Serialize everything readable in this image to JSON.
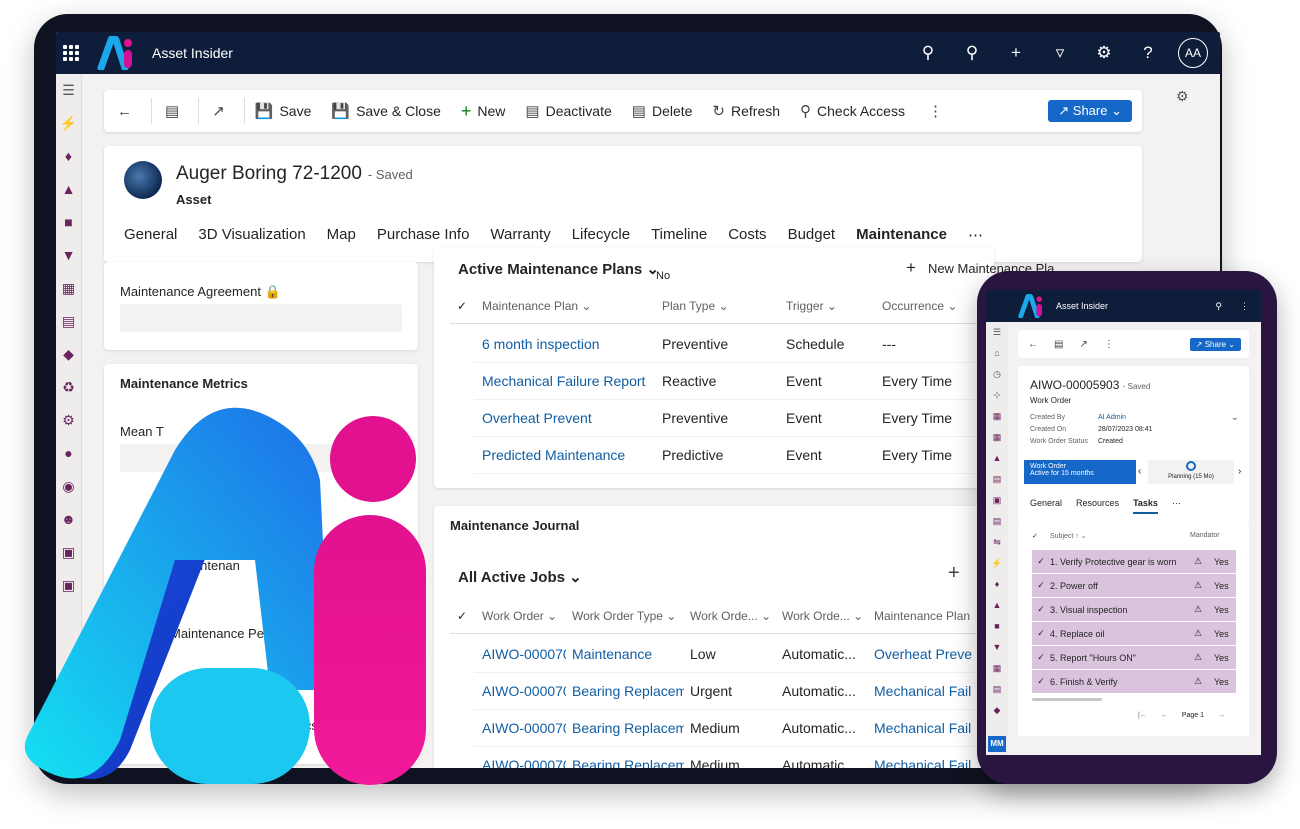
{
  "app": {
    "title": "Asset Insider",
    "avatar": "AA"
  },
  "topbar": {
    "icons": [
      "search-icon",
      "lightbulb-icon",
      "plus-icon",
      "filter-icon",
      "gear-icon",
      "help-icon"
    ]
  },
  "cmdbar": {
    "save": "Save",
    "save_close": "Save & Close",
    "new": "New",
    "deactivate": "Deactivate",
    "delete": "Delete",
    "refresh": "Refresh",
    "check_access": "Check Access",
    "share": "Share"
  },
  "record": {
    "title": "Auger Boring 72-1200",
    "status": "- Saved",
    "entity": "Asset",
    "tabs": [
      "General",
      "3D Visualization",
      "Map",
      "Purchase Info",
      "Warranty",
      "Lifecycle",
      "Timeline",
      "Costs",
      "Budget",
      "Maintenance",
      "⋯"
    ]
  },
  "left": {
    "agreement_label": "Maintenance Agreement",
    "metrics_title": "Maintenance Metrics",
    "mean_label": "Mean T",
    "maint_label": "aintenan",
    "perc_label": "Maintenance Perce",
    "ics_label": "ics"
  },
  "plans": {
    "title": "Active Maintenance Plans",
    "subtitle": "No",
    "new_label": "New Maintenance Pla...",
    "columns": [
      "Maintenance Plan",
      "Plan Type",
      "Trigger",
      "Occurrence"
    ],
    "rows": [
      [
        "6 month inspection",
        "Preventive",
        "Schedule",
        "---"
      ],
      [
        "Mechanical Failure Report",
        "Reactive",
        "Event",
        "Every Time"
      ],
      [
        "Overheat Prevent",
        "Preventive",
        "Event",
        "Every Time"
      ],
      [
        "Predicted Maintenance",
        "Predictive",
        "Event",
        "Every Time"
      ]
    ]
  },
  "journal": {
    "title": "Maintenance Journal",
    "view": "All Active Jobs",
    "columns": [
      "Work Order",
      "Work Order Type",
      "Work Orde...",
      "Work Orde...",
      "Maintenance Plan"
    ],
    "rows": [
      [
        "AIWO-000070(",
        "Maintenance",
        "Low",
        "Automatic...",
        "Overheat Preve"
      ],
      [
        "AIWO-000070(",
        "Bearing Replacemen",
        "Urgent",
        "Automatic...",
        "Mechanical Fail"
      ],
      [
        "AIWO-000070",
        "Bearing Replacemen",
        "Medium",
        "Automatic...",
        "Mechanical Fail"
      ],
      [
        "AIWO-000070",
        "Bearing Replacemer",
        "Medium",
        "Automatic...",
        "Mechanical Fail"
      ]
    ]
  },
  "phone": {
    "app_title": "Asset Insider",
    "share": "Share",
    "wo_title": "AIWO-00005903",
    "wo_status": "- Saved",
    "wo_entity": "Work Order",
    "fields": [
      {
        "label": "Created By",
        "value": "AI Admin"
      },
      {
        "label": "Created On",
        "value": "28/07/2023 08:41"
      },
      {
        "label": "Work Order Status",
        "value": "Created"
      }
    ],
    "stage_title": "Work Order",
    "stage_sub": "Active for 15 months",
    "stage_next": "Planning (15 Mo)",
    "tabs": [
      "General",
      "Resources",
      "Tasks",
      "⋯"
    ],
    "col_subject": "Subject ↑",
    "col_mand": "Mandator",
    "tasks": [
      {
        "name": "1. Verify Protective gear is worn",
        "val": "Yes"
      },
      {
        "name": "2. Power off",
        "val": "Yes"
      },
      {
        "name": "3. Visual inspection",
        "val": "Yes"
      },
      {
        "name": "4. Replace oil",
        "val": "Yes"
      },
      {
        "name": "5. Report \"Hours ON\"",
        "val": "Yes"
      },
      {
        "name": "6. Finish & Verify",
        "val": "Yes"
      }
    ],
    "page": "Page 1",
    "nav_badge": "MM"
  }
}
